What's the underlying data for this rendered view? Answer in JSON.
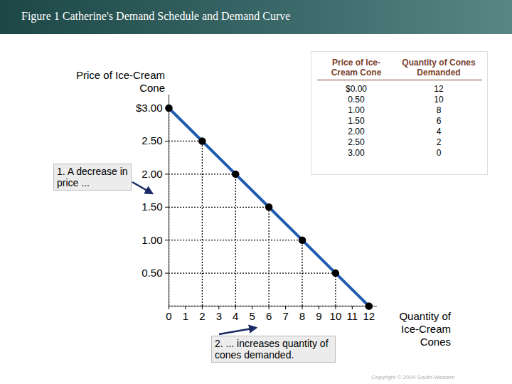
{
  "chart_data": {
    "type": "line",
    "title": "Figure 1 Catherine's Demand Schedule and Demand Curve",
    "y_label": "Price of Ice-Cream Cone",
    "x_label": "Quantity of Ice-Cream Cones",
    "x": [
      0,
      2,
      4,
      6,
      8,
      10,
      12
    ],
    "values": [
      3,
      2.5,
      2,
      1.5,
      1,
      0.5,
      0
    ],
    "color": "#1f5bb0",
    "marker": "circle",
    "line_style": "solid",
    "xlim": [
      0,
      12.5
    ],
    "xticks": [
      0,
      1,
      2,
      3,
      4,
      5,
      6,
      7,
      8,
      9,
      10,
      11,
      12
    ],
    "ylim": [
      0,
      3.2
    ],
    "yticks": [
      {
        "value": 0.5,
        "label": "0.50"
      },
      {
        "value": 1,
        "label": "1.00"
      },
      {
        "value": 1.5,
        "label": "1.50"
      },
      {
        "value": 2,
        "label": "2.00"
      },
      {
        "value": 2.5,
        "label": "2.50"
      },
      {
        "value": 3,
        "label": "$3.00"
      }
    ],
    "annotations": [
      "1. A decrease in price ...",
      "2. ... increases quantity of cones demanded."
    ],
    "table": {
      "columns": [
        "Price of Ice-Cream Cone",
        "Quantity of Cones Demanded"
      ],
      "rows": [
        [
          "$0.00",
          "12"
        ],
        [
          "0.50",
          "10"
        ],
        [
          "1.00",
          "8"
        ],
        [
          "1.50",
          "6"
        ],
        [
          "2.00",
          "4"
        ],
        [
          "2.50",
          "2"
        ],
        [
          "3.00",
          "0"
        ]
      ]
    },
    "caption": "Copyright © 2004 South-Western"
  }
}
